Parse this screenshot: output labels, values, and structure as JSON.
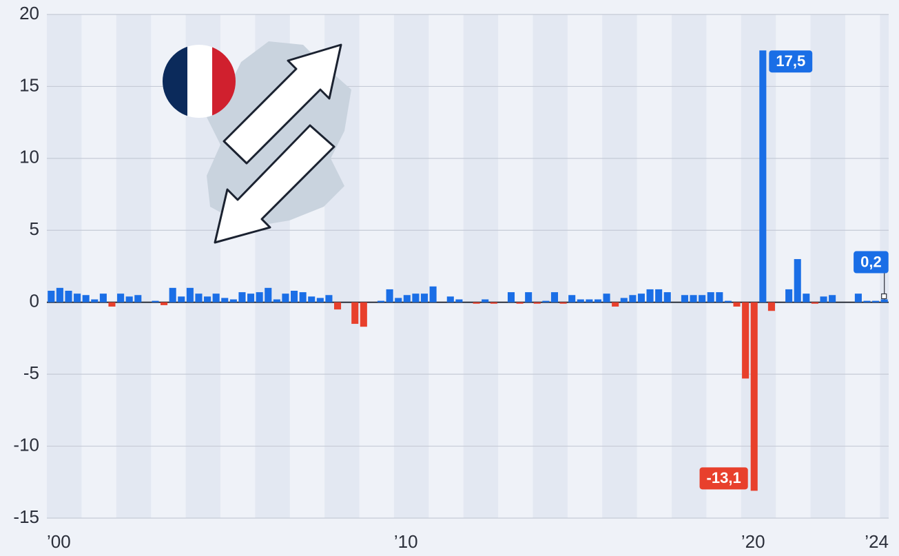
{
  "chart_data": {
    "type": "bar",
    "categories": [
      "’00",
      null,
      null,
      null,
      null,
      null,
      null,
      null,
      null,
      null,
      null,
      null,
      null,
      null,
      null,
      null,
      null,
      null,
      null,
      null,
      null,
      null,
      null,
      null,
      null,
      null,
      null,
      null,
      null,
      null,
      null,
      null,
      null,
      null,
      null,
      null,
      null,
      null,
      null,
      null,
      "’10",
      null,
      null,
      null,
      null,
      null,
      null,
      null,
      null,
      null,
      null,
      null,
      null,
      null,
      null,
      null,
      null,
      null,
      null,
      null,
      null,
      null,
      null,
      null,
      null,
      null,
      null,
      null,
      null,
      null,
      null,
      null,
      null,
      null,
      null,
      null,
      null,
      null,
      null,
      null,
      "’20",
      null,
      null,
      null,
      null,
      null,
      null,
      null,
      null,
      null,
      null,
      null,
      null,
      null,
      null,
      null,
      "’24"
    ],
    "values": [
      0.8,
      1.0,
      0.8,
      0.6,
      0.5,
      0.2,
      0.6,
      -0.3,
      0.6,
      0.4,
      0.5,
      0.0,
      0.1,
      -0.2,
      1.0,
      0.4,
      1.0,
      0.6,
      0.4,
      0.6,
      0.3,
      0.2,
      0.7,
      0.6,
      0.7,
      1.0,
      0.2,
      0.6,
      0.8,
      0.7,
      0.4,
      0.3,
      0.5,
      -0.5,
      0.0,
      -1.5,
      -1.7,
      0.0,
      0.1,
      0.9,
      0.3,
      0.5,
      0.6,
      0.6,
      1.1,
      0.0,
      0.4,
      0.2,
      0.0,
      -0.1,
      0.2,
      -0.1,
      0.0,
      0.7,
      -0.1,
      0.7,
      -0.1,
      0.1,
      0.7,
      -0.1,
      0.5,
      0.2,
      0.2,
      0.2,
      0.6,
      -0.3,
      0.3,
      0.5,
      0.6,
      0.9,
      0.9,
      0.7,
      0.0,
      0.5,
      0.5,
      0.5,
      0.7,
      0.7,
      0.1,
      -0.3,
      -5.3,
      -13.1,
      17.5,
      -0.6,
      0.0,
      0.9,
      3.0,
      0.6,
      -0.1,
      0.4,
      0.5,
      0.0,
      0.0,
      0.6,
      0.1,
      0.1,
      0.2
    ],
    "value_labels": [
      null,
      null,
      null,
      null,
      null,
      null,
      null,
      null,
      null,
      null,
      null,
      null,
      null,
      null,
      null,
      null,
      null,
      null,
      null,
      null,
      null,
      null,
      null,
      null,
      null,
      null,
      null,
      null,
      null,
      null,
      null,
      null,
      null,
      null,
      null,
      null,
      null,
      null,
      null,
      null,
      null,
      null,
      null,
      null,
      null,
      null,
      null,
      null,
      null,
      null,
      null,
      null,
      null,
      null,
      null,
      null,
      null,
      null,
      null,
      null,
      null,
      null,
      null,
      null,
      null,
      null,
      null,
      null,
      null,
      null,
      null,
      null,
      null,
      null,
      null,
      null,
      null,
      null,
      null,
      null,
      null,
      "-13,1",
      "17,5",
      null,
      null,
      null,
      null,
      null,
      null,
      null,
      null,
      null,
      null,
      null,
      null,
      null,
      "0,2"
    ],
    "positive_color": "#1a6ee6",
    "negative_color": "#e8402c",
    "ylim": [
      -15,
      20
    ],
    "yticks": [
      20,
      15,
      10,
      5,
      0,
      -5,
      -10,
      -15
    ],
    "grid": true
  }
}
